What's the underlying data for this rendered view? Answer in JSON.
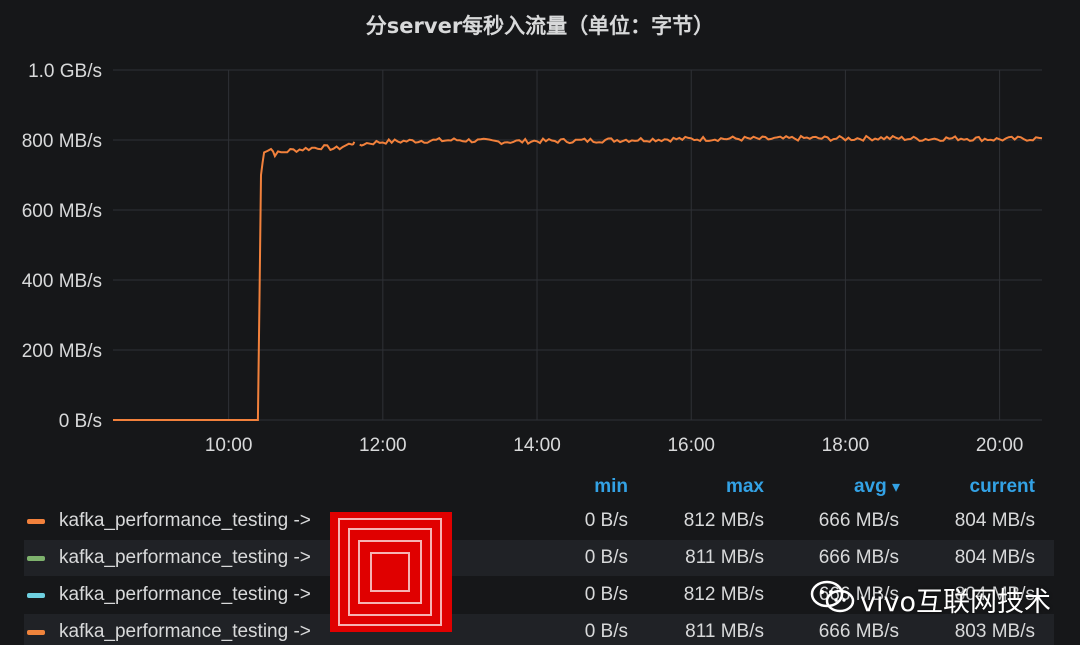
{
  "panel": {
    "title": "分server每秒入流量（单位：字节）"
  },
  "chart_data": {
    "type": "line",
    "title": "分server每秒入流量（单位：字节）",
    "xlabel": "",
    "ylabel": "",
    "x_ticks": [
      "10:00",
      "12:00",
      "14:00",
      "16:00",
      "18:00",
      "20:00"
    ],
    "y_ticks": [
      "0 B/s",
      "200 MB/s",
      "400 MB/s",
      "600 MB/s",
      "800 MB/s",
      "1.0 GB/s"
    ],
    "y_tick_values": [
      0,
      200,
      400,
      600,
      800,
      1000
    ],
    "xlim_hours": [
      8.5,
      20.55
    ],
    "ylim": [
      0,
      1000
    ],
    "grid": true,
    "series": [
      {
        "color": "#f2813c",
        "points": [
          [
            8.5,
            0
          ],
          [
            10.0,
            0
          ],
          [
            10.38,
            0
          ],
          [
            10.42,
            700
          ],
          [
            10.46,
            770
          ],
          [
            10.55,
            775
          ],
          [
            10.6,
            760
          ],
          [
            10.8,
            770
          ],
          [
            11.0,
            775
          ],
          [
            11.2,
            780
          ],
          [
            11.4,
            775
          ],
          [
            11.6,
            790
          ],
          [
            11.63,
            795
          ],
          [
            11.65,
            null
          ],
          [
            11.7,
            780
          ],
          [
            11.75,
            790
          ],
          [
            12.0,
            795
          ],
          [
            12.5,
            798
          ],
          [
            13.0,
            800
          ],
          [
            13.5,
            795
          ],
          [
            14.0,
            797
          ],
          [
            14.5,
            798
          ],
          [
            15.0,
            800
          ],
          [
            15.5,
            802
          ],
          [
            16.0,
            803
          ],
          [
            16.5,
            804
          ],
          [
            17.0,
            803
          ],
          [
            17.5,
            805
          ],
          [
            18.0,
            804
          ],
          [
            18.5,
            806
          ],
          [
            19.0,
            803
          ],
          [
            19.5,
            805
          ],
          [
            20.0,
            802
          ],
          [
            20.55,
            805
          ]
        ]
      },
      {
        "color": "#7eb26d",
        "points": []
      },
      {
        "color": "#6ed0e0",
        "points": []
      },
      {
        "color": "#ef843c",
        "points": []
      }
    ]
  },
  "legend": {
    "headers": {
      "min": "min",
      "max": "max",
      "avg": "avg",
      "sort_arrow": "▾",
      "current": "current"
    },
    "rows": [
      {
        "name": "kafka_performance_testing ->",
        "color": "#f2813c",
        "min": "0 B/s",
        "max": "812 MB/s",
        "avg": "666 MB/s",
        "current": "804 MB/s"
      },
      {
        "name": "kafka_performance_testing ->",
        "color": "#7eb26d",
        "min": "0 B/s",
        "max": "811 MB/s",
        "avg": "666 MB/s",
        "current": "804 MB/s"
      },
      {
        "name": "kafka_performance_testing ->",
        "color": "#6ed0e0",
        "min": "0 B/s",
        "max": "812 MB/s",
        "avg": "666 MB/s",
        "current": "804 MB/s"
      },
      {
        "name": "kafka_performance_testing ->",
        "color": "#ef843c",
        "min": "0 B/s",
        "max": "811 MB/s",
        "avg": "666 MB/s",
        "current": "803 MB/s"
      }
    ]
  },
  "watermark": {
    "text": "vivo互联网技术",
    "icon": "wechat-icon"
  }
}
